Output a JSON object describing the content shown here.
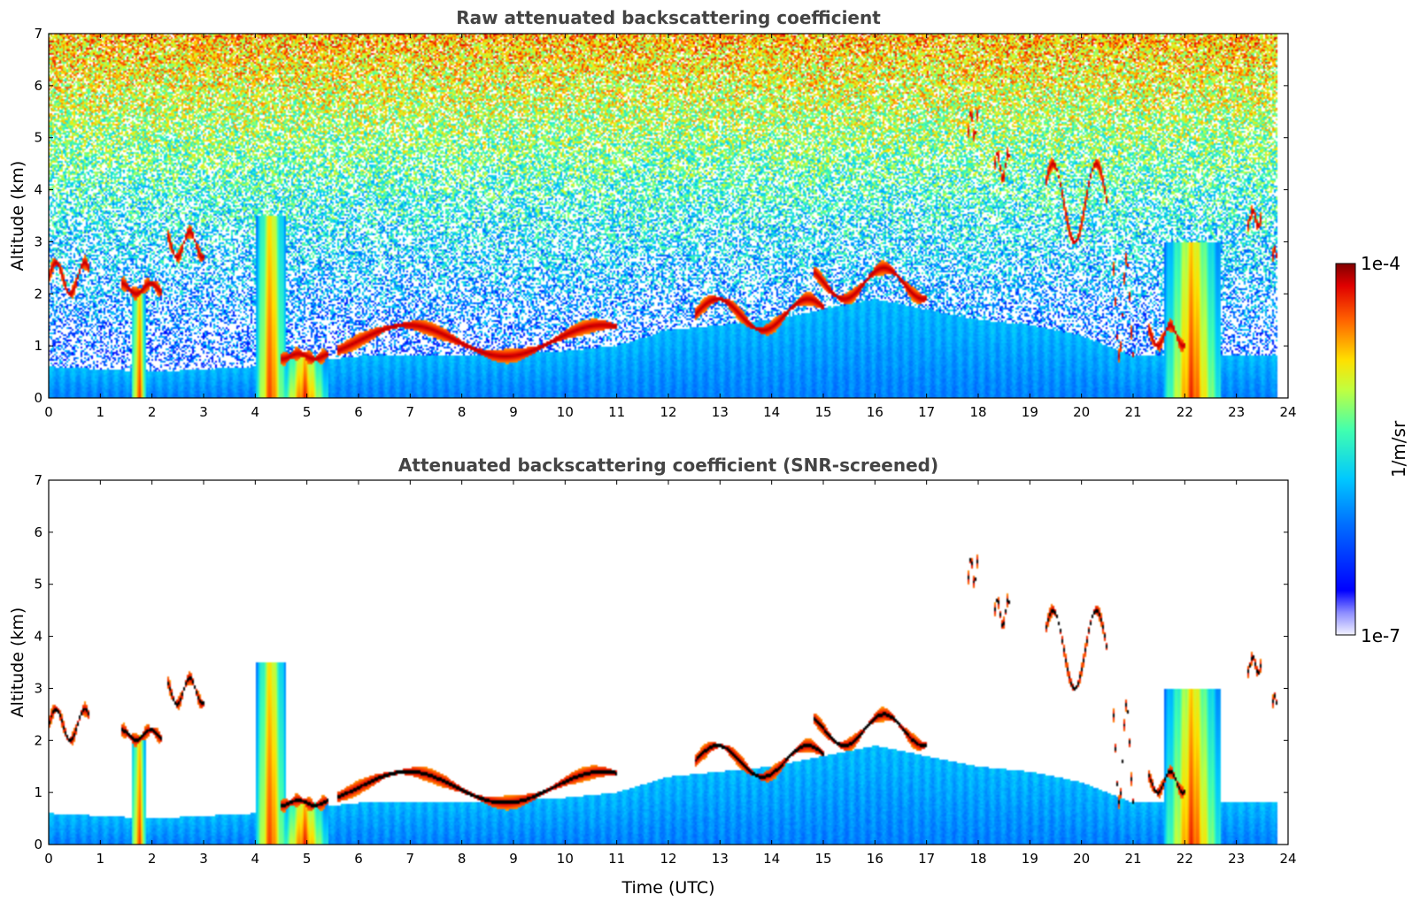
{
  "chart_data": [
    {
      "type": "heatmap",
      "title": "Raw attenuated backscattering coefficient",
      "xlabel": "",
      "ylabel": "Altitude (km)",
      "xlim": [
        0,
        24
      ],
      "ylim": [
        0,
        7
      ],
      "xticks": [
        "0",
        "1",
        "2",
        "3",
        "4",
        "5",
        "6",
        "7",
        "8",
        "9",
        "10",
        "11",
        "12",
        "13",
        "14",
        "15",
        "16",
        "17",
        "18",
        "19",
        "20",
        "21",
        "22",
        "23",
        "24"
      ],
      "yticks": [
        "0",
        "1",
        "2",
        "3",
        "4",
        "5",
        "6",
        "7"
      ],
      "screened": false,
      "features": {
        "boundary_layer_top_km": [
          [
            0,
            0.6
          ],
          [
            2,
            0.5
          ],
          [
            4,
            0.6
          ],
          [
            6,
            0.8
          ],
          [
            8,
            0.8
          ],
          [
            10,
            0.9
          ],
          [
            11,
            1.0
          ],
          [
            12,
            1.3
          ],
          [
            14,
            1.5
          ],
          [
            16,
            1.9
          ],
          [
            17,
            1.7
          ],
          [
            18,
            1.5
          ],
          [
            19,
            1.4
          ],
          [
            20,
            1.2
          ],
          [
            21,
            0.8
          ],
          [
            23,
            0.8
          ],
          [
            23.8,
            0.8
          ]
        ],
        "cloud_layers": [
          {
            "t": [
              0.0,
              0.8
            ],
            "z": [
              2.0,
              2.6
            ]
          },
          {
            "t": [
              1.4,
              2.2
            ],
            "z": [
              2.0,
              2.2
            ]
          },
          {
            "t": [
              2.3,
              3.0
            ],
            "z": [
              2.7,
              3.2
            ]
          },
          {
            "t": [
              4.5,
              5.4
            ],
            "z": [
              0.75,
              0.85
            ]
          },
          {
            "t": [
              5.6,
              11.0
            ],
            "z": [
              0.8,
              1.4
            ]
          },
          {
            "t": [
              12.5,
              15.0
            ],
            "z": [
              1.3,
              1.9
            ]
          },
          {
            "t": [
              14.8,
              17.0
            ],
            "z": [
              1.9,
              2.5
            ]
          },
          {
            "t": [
              17.8,
              18.0
            ],
            "z": [
              5.0,
              5.5
            ]
          },
          {
            "t": [
              18.3,
              18.6
            ],
            "z": [
              4.2,
              4.7
            ]
          },
          {
            "t": [
              19.3,
              20.5
            ],
            "z": [
              3.0,
              4.5
            ]
          },
          {
            "t": [
              20.6,
              21.0
            ],
            "z": [
              0.8,
              2.7
            ]
          },
          {
            "t": [
              21.3,
              22.0
            ],
            "z": [
              1.0,
              1.4
            ]
          },
          {
            "t": [
              23.2,
              23.5
            ],
            "z": [
              3.3,
              3.6
            ]
          },
          {
            "t": [
              23.7,
              23.8
            ],
            "z": [
              2.7,
              2.9
            ]
          }
        ],
        "precipitation_columns": [
          {
            "t": [
              1.6,
              1.9
            ],
            "z_top": 2.1
          },
          {
            "t": [
              4.0,
              4.6
            ],
            "z_top": 3.5
          },
          {
            "t": [
              4.5,
              5.4
            ],
            "z_top": 0.8
          },
          {
            "t": [
              21.6,
              22.7
            ],
            "z_top": 3.0
          }
        ]
      }
    },
    {
      "type": "heatmap",
      "title": "Attenuated backscattering coefficient (SNR-screened)",
      "xlabel": "Time (UTC)",
      "ylabel": "Altitude (km)",
      "xlim": [
        0,
        24
      ],
      "ylim": [
        0,
        7
      ],
      "xticks": [
        "0",
        "1",
        "2",
        "3",
        "4",
        "5",
        "6",
        "7",
        "8",
        "9",
        "10",
        "11",
        "12",
        "13",
        "14",
        "15",
        "16",
        "17",
        "18",
        "19",
        "20",
        "21",
        "22",
        "23",
        "24"
      ],
      "yticks": [
        "0",
        "1",
        "2",
        "3",
        "4",
        "5",
        "6",
        "7"
      ],
      "screened": true
    }
  ],
  "colorbar": {
    "label": "1/m/sr",
    "max_label": "1e-4",
    "min_label": "1e-7",
    "colormap": "jet"
  }
}
